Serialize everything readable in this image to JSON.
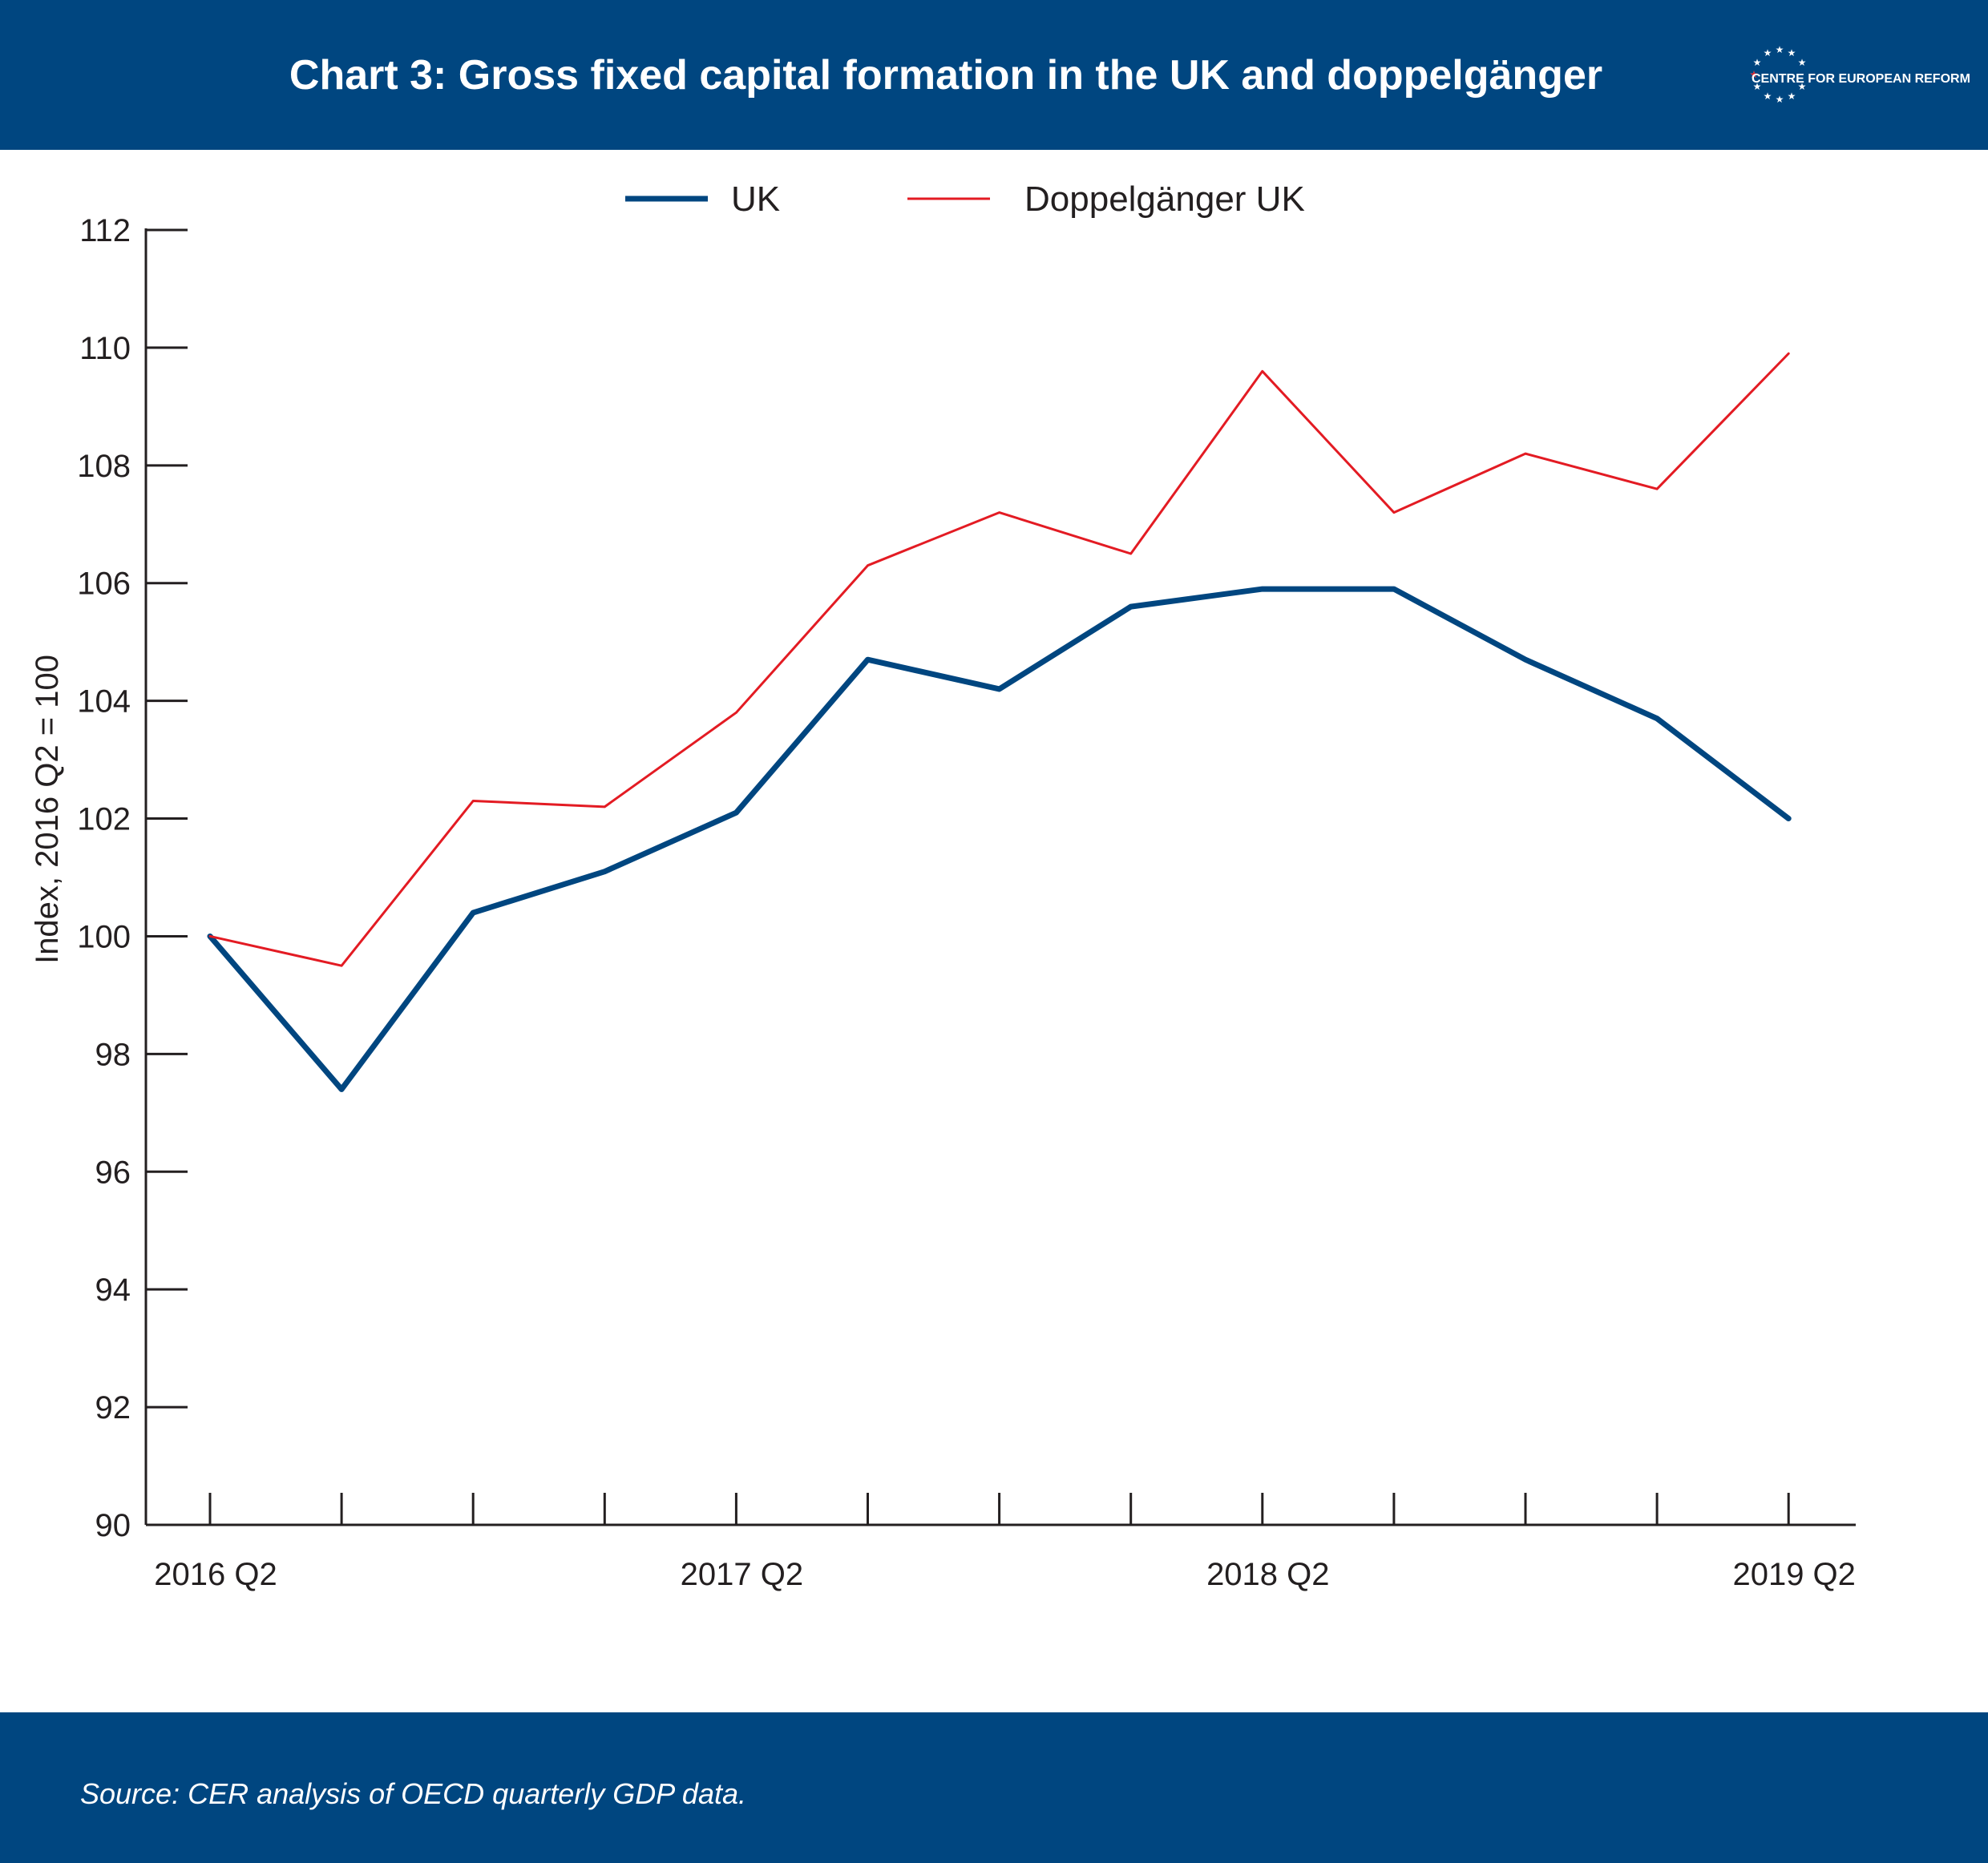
{
  "header": {
    "title": "Chart 3: Gross fixed capital formation in the UK and doppelgänger",
    "logo_text": "CENTRE FOR EUROPEAN REFORM"
  },
  "footer": {
    "source": "Source: CER analysis of OECD quarterly GDP data."
  },
  "colors": {
    "band": "#004680",
    "uk_line": "#004680",
    "doppel_line": "#e31b23",
    "axis": "#231f20",
    "logo_accent": "#e31b23"
  },
  "chart_data": {
    "type": "line",
    "ylabel": "Index, 2016 Q2 = 100",
    "xlabel": "",
    "ylim": [
      90,
      112
    ],
    "yticks": [
      90,
      92,
      94,
      96,
      98,
      100,
      102,
      104,
      106,
      108,
      110,
      112
    ],
    "x": [
      "2016 Q2",
      "2016 Q3",
      "2016 Q4",
      "2017 Q1",
      "2017 Q2",
      "2017 Q3",
      "2017 Q4",
      "2018 Q1",
      "2018 Q2",
      "2018 Q3",
      "2018 Q4",
      "2019 Q1",
      "2019 Q2"
    ],
    "xtick_labels": [
      {
        "label": "2016 Q2",
        "index": 0
      },
      {
        "label": "2017 Q2",
        "index": 4
      },
      {
        "label": "2018 Q2",
        "index": 8
      },
      {
        "label": "2019 Q2",
        "index": 12
      }
    ],
    "legend_position": "top-center",
    "grid": false,
    "series": [
      {
        "name": "UK",
        "color": "#004680",
        "values": [
          100.0,
          97.4,
          100.4,
          101.1,
          102.1,
          104.7,
          104.2,
          105.6,
          105.9,
          105.9,
          104.7,
          103.7,
          102.0
        ]
      },
      {
        "name": "Doppelgänger UK",
        "color": "#e31b23",
        "values": [
          100.0,
          99.5,
          102.3,
          102.2,
          103.8,
          106.3,
          107.2,
          106.5,
          109.6,
          107.2,
          108.2,
          107.6,
          109.9
        ]
      }
    ]
  }
}
